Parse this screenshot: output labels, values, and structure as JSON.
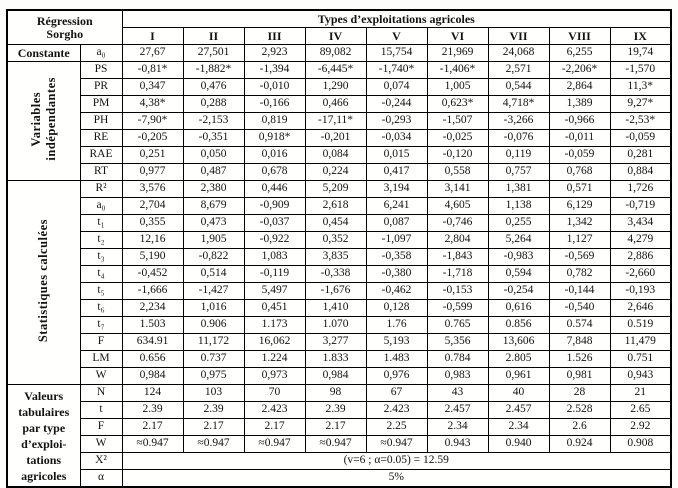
{
  "table": {
    "corner_header": "Régression\nSorgho",
    "group_header": "Types d’exploitations agricoles",
    "columns": [
      "I",
      "II",
      "III",
      "IV",
      "V",
      "VI",
      "VII",
      "VIII",
      "IX"
    ],
    "constante": {
      "label": "Constante",
      "sub": "a₀",
      "values": [
        "27,67",
        "27,501",
        "2,923",
        "89,082",
        "15,754",
        "21,969",
        "24,068",
        "6,255",
        "19,74"
      ]
    },
    "variables": {
      "label": "Variables\nindépendantes",
      "rows": [
        {
          "sub": "PS",
          "values": [
            "-0,81*",
            "-1,882*",
            "-1,394",
            "-6,445*",
            "-1,740*",
            "-1,406*",
            "2,571",
            "-2,206*",
            "-1,570"
          ]
        },
        {
          "sub": "PR",
          "values": [
            "0,347",
            "0,476",
            "-0,010",
            "1,290",
            "0,074",
            "1,005",
            "0,544",
            "2,864",
            "11,3*"
          ]
        },
        {
          "sub": "PM",
          "values": [
            "4,38*",
            "0,288",
            "-0,166",
            "0,466",
            "-0,244",
            "0,623*",
            "4,718*",
            "1,389",
            "9,27*"
          ]
        },
        {
          "sub": "PH",
          "values": [
            "-7,90*",
            "-2,153",
            "0,819",
            "-17,11*",
            "-0,293",
            "-1,507",
            "-3,266",
            "-0,966",
            "-2,53*"
          ]
        },
        {
          "sub": "RE",
          "values": [
            "-0,205",
            "-0,351",
            "0,918*",
            "-0,201",
            "-0,034",
            "-0,025",
            "-0,076",
            "-0,011",
            "-0,059"
          ]
        },
        {
          "sub": "RAE",
          "values": [
            "0,251",
            "0,050",
            "0,016",
            "0,084",
            "0,015",
            "-0,120",
            "0,119",
            "-0,059",
            "0,281"
          ]
        },
        {
          "sub": "RT",
          "values": [
            "0,977",
            "0,487",
            "0,678",
            "0,224",
            "0,417",
            "0,558",
            "0,757",
            "0,768",
            "0,884"
          ]
        }
      ]
    },
    "stats": {
      "label": "Statistiques calculées",
      "rows": [
        {
          "sub": "R²",
          "values": [
            "3,576",
            "2,380",
            "0,446",
            "5,209",
            "3,194",
            "3,141",
            "1,381",
            "0,571",
            "1,726"
          ]
        },
        {
          "sub": "a₀",
          "values": [
            "2,704",
            "8,679",
            "-0,909",
            "2,618",
            "6,241",
            "4,605",
            "1,138",
            "6,129",
            "-0,719"
          ]
        },
        {
          "sub": "t₁",
          "values": [
            "0,355",
            "0,473",
            "-0,037",
            "0,454",
            "0,087",
            "-0,746",
            "0,255",
            "1,342",
            "3,434"
          ]
        },
        {
          "sub": "t₂",
          "values": [
            "12,16",
            "1,905",
            "-0,922",
            "0,352",
            "-1,097",
            "2,804",
            "5,264",
            "1,127",
            "4,279"
          ]
        },
        {
          "sub": "t₃",
          "values": [
            "5,190",
            "-0,822",
            "1,083",
            "3,835",
            "-0,358",
            "-1,843",
            "-0,983",
            "-0,569",
            "2,886"
          ]
        },
        {
          "sub": "t₄",
          "values": [
            "-0,452",
            "0,514",
            "-0,119",
            "-0,338",
            "-0,380",
            "-1,718",
            "0,594",
            "0,782",
            "-2,660"
          ]
        },
        {
          "sub": "t₅",
          "values": [
            "-1,666",
            "-1,427",
            "5,497",
            "-1,676",
            "-0,462",
            "-0,153",
            "-0,254",
            "-0,144",
            "-0,193"
          ]
        },
        {
          "sub": "t₆",
          "values": [
            "2,234",
            "1,016",
            "0,451",
            "1,410",
            "0,128",
            "-0,599",
            "0,616",
            "-0,540",
            "2,646"
          ]
        },
        {
          "sub": "t₇",
          "values": [
            "1.503",
            "0.906",
            "1.173",
            "1.070",
            "1.76",
            "0.765",
            "0.856",
            "0.574",
            "0.519"
          ]
        },
        {
          "sub": "F",
          "values": [
            "634.91",
            "11,172",
            "16,062",
            "3,277",
            "5,193",
            "5,356",
            "13,606",
            "7,848",
            "11,479"
          ]
        },
        {
          "sub": "LM",
          "values": [
            "0.656",
            "0.737",
            "1.224",
            "1.833",
            "1.483",
            "0.784",
            "2.805",
            "1.526",
            "0.751"
          ]
        },
        {
          "sub": "W",
          "values": [
            "0,984",
            "0,975",
            "0,973",
            "0,984",
            "0,976",
            "0,983",
            "0,961",
            "0,981",
            "0,943"
          ]
        }
      ]
    },
    "tabulaires": {
      "label": "Valeurs\ntabulaires\npar type\nd’exploi-\ntations\nagricoles",
      "rows": [
        {
          "sub": "N",
          "values": [
            "124",
            "103",
            "70",
            "98",
            "67",
            "43",
            "40",
            "28",
            "21"
          ]
        },
        {
          "sub": "t",
          "values": [
            "2.39",
            "2.39",
            "2.423",
            "2.39",
            "2.423",
            "2.457",
            "2.457",
            "2.528",
            "2.65"
          ]
        },
        {
          "sub": "F",
          "values": [
            "2.17",
            "2.17",
            "2.17",
            "2.17",
            "2.25",
            "2.34",
            "2.34",
            "2.6",
            "2.92"
          ]
        },
        {
          "sub": "W",
          "values": [
            "≈0.947",
            "≈0.947",
            "≈0.947",
            "≈0.947",
            "≈0.947",
            "0.943",
            "0.940",
            "0.924",
            "0.908"
          ]
        }
      ],
      "chi2_sub": "X²",
      "chi2_text": "(v=6 ; α=0.05) = 12.59",
      "alpha_sub": "α",
      "alpha_text": "5%"
    }
  }
}
